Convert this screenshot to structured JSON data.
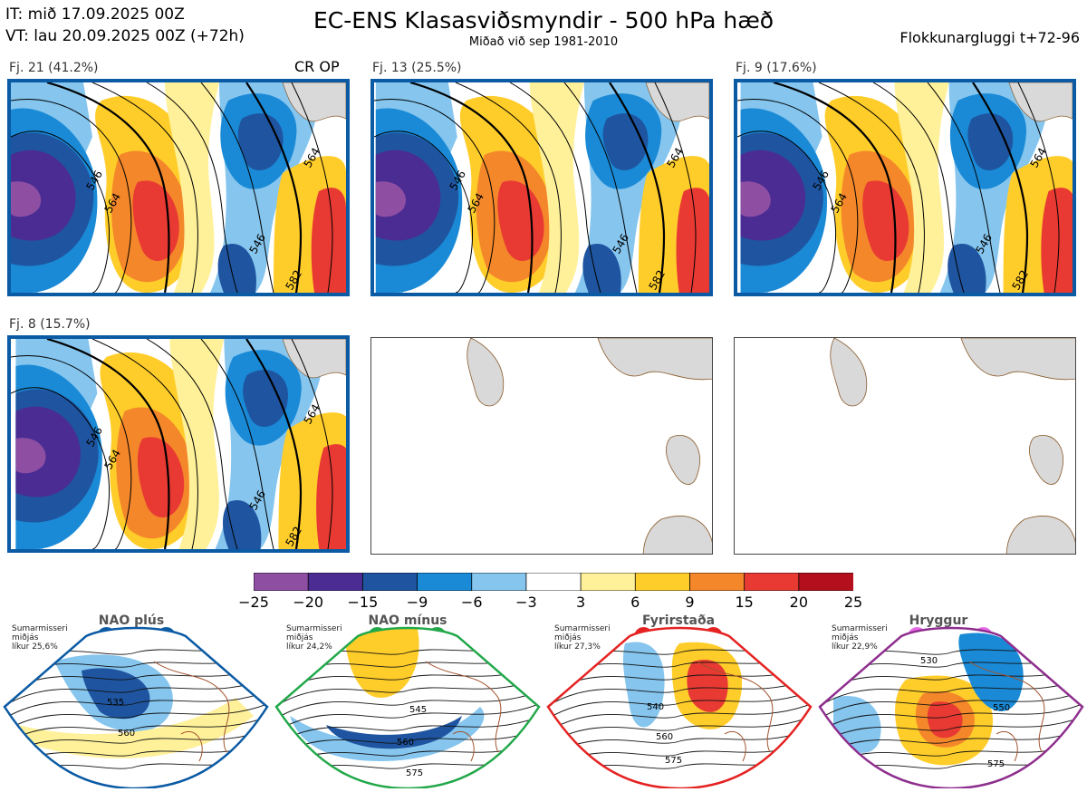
{
  "header": {
    "it": "IT: mið 17.09.2025 00Z",
    "vt": "VT: lau 20.09.2025 00Z  (+72h)",
    "title": "EC-ENS Klasasviðsmyndir - 500 hPa hæð",
    "subtitle": "Miðað við sep 1981-2010",
    "window": "Flokkunargluggi t+72-96"
  },
  "panels": [
    {
      "label": "Fj. 21 (41.2%)",
      "badge": "CR OP",
      "contours": [
        "546",
        "564",
        "546",
        "564",
        "582"
      ]
    },
    {
      "label": "Fj. 13 (25.5%)",
      "contours": [
        "546",
        "564",
        "546",
        "564",
        "582"
      ]
    },
    {
      "label": "Fj. 9 (17.6%)",
      "contours": [
        "546",
        "564",
        "546",
        "564",
        "582"
      ]
    },
    {
      "label": "Fj. 8 (15.7%)",
      "contours": [
        "546",
        "564",
        "546",
        "564",
        "582"
      ]
    },
    {
      "label": ""
    },
    {
      "label": ""
    }
  ],
  "colorbar": {
    "ticks": [
      "−25",
      "−20",
      "−15",
      "−9",
      "−6",
      "−3",
      "3",
      "6",
      "9",
      "15",
      "20",
      "25"
    ],
    "colors": [
      "#8e4fa3",
      "#4b2c92",
      "#1f55a0",
      "#1a8ad6",
      "#85c5ee",
      "#ffffff",
      "#fff19a",
      "#ffcd2a",
      "#f4872a",
      "#e83a33",
      "#b30f1c"
    ]
  },
  "regimes": [
    {
      "name": "NAO plús",
      "season": "Sumarmisseri",
      "position": "miðjás",
      "likelihood": "líkur 25,6%",
      "dot_color": "#0a5aa4",
      "frame_color": "#0a5aa4",
      "contours": [
        "535",
        "560"
      ]
    },
    {
      "name": "NAO mínus",
      "season": "Sumarmisseri",
      "position": "miðjás",
      "likelihood": "líkur 24,2%",
      "dot_color": "#22a84a",
      "frame_color": "#22a84a",
      "contours": [
        "545",
        "560",
        "575"
      ]
    },
    {
      "name": "Fyrirstaða",
      "season": "Sumarmisseri",
      "position": "miðjás",
      "likelihood": "líkur 27,3%",
      "dot_color": "#e52222",
      "frame_color": "#e52222",
      "contours": [
        "540",
        "560",
        "575"
      ]
    },
    {
      "name": "Hryggur",
      "season": "Sumarmisseri",
      "position": "miðjás",
      "likelihood": "líkur 22,9%",
      "dot_color": "#e66ae6",
      "frame_color": "#8e2e8e",
      "contours": [
        "530",
        "550",
        "575"
      ]
    }
  ]
}
